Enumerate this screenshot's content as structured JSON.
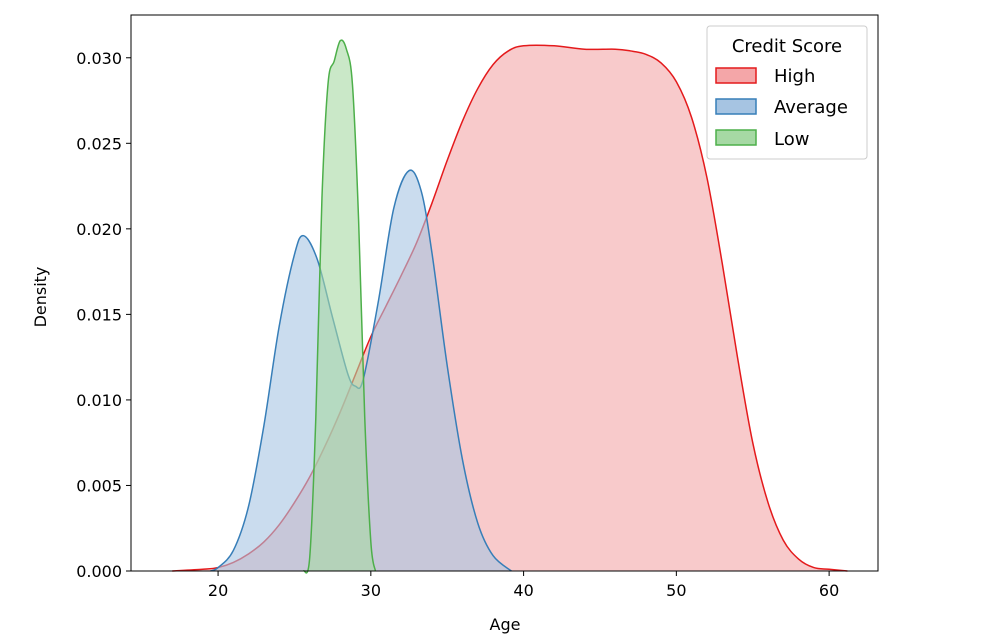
{
  "chart_data": {
    "type": "area",
    "title": "",
    "xlabel": "Age",
    "ylabel": "Density",
    "xlim": [
      14.3,
      63.2
    ],
    "ylim": [
      0,
      0.0325
    ],
    "x_ticks": [
      "20",
      "30",
      "40",
      "50",
      "60"
    ],
    "y_ticks": [
      "0.000",
      "0.005",
      "0.010",
      "0.015",
      "0.020",
      "0.025",
      "0.030"
    ],
    "grid": false,
    "legend": {
      "title": "Credit Score",
      "placement": "top-right",
      "entries": [
        "High",
        "Average",
        "Low"
      ]
    },
    "series": [
      {
        "name": "High",
        "color": "#e41a1c",
        "fill": "#f4a6a8",
        "points": [
          [
            17.0,
            0.0
          ],
          [
            19.0,
            0.0001
          ],
          [
            20.0,
            0.0002
          ],
          [
            21.0,
            0.0005
          ],
          [
            22.0,
            0.001
          ],
          [
            23.0,
            0.0017
          ],
          [
            24.0,
            0.0027
          ],
          [
            25.0,
            0.004
          ],
          [
            26.0,
            0.0055
          ],
          [
            27.0,
            0.0073
          ],
          [
            28.0,
            0.0093
          ],
          [
            29.0,
            0.0115
          ],
          [
            30.0,
            0.0137
          ],
          [
            31.0,
            0.0155
          ],
          [
            32.0,
            0.0173
          ],
          [
            33.0,
            0.0192
          ],
          [
            34.0,
            0.0215
          ],
          [
            35.0,
            0.024
          ],
          [
            36.0,
            0.0263
          ],
          [
            37.0,
            0.0282
          ],
          [
            38.0,
            0.0296
          ],
          [
            39.0,
            0.0304
          ],
          [
            40.0,
            0.0307
          ],
          [
            42.0,
            0.0307
          ],
          [
            44.0,
            0.0305
          ],
          [
            46.0,
            0.0305
          ],
          [
            47.0,
            0.0304
          ],
          [
            48.0,
            0.0302
          ],
          [
            49.0,
            0.0297
          ],
          [
            50.0,
            0.0286
          ],
          [
            51.0,
            0.0265
          ],
          [
            52.0,
            0.023
          ],
          [
            53.0,
            0.018
          ],
          [
            54.0,
            0.0125
          ],
          [
            55.0,
            0.0075
          ],
          [
            56.0,
            0.004
          ],
          [
            57.0,
            0.0018
          ],
          [
            58.0,
            0.0007
          ],
          [
            59.0,
            0.0002
          ],
          [
            60.0,
            0.0001
          ],
          [
            61.2,
            0.0
          ]
        ]
      },
      {
        "name": "Average",
        "color": "#377eb8",
        "fill": "#a6c4e2",
        "points": [
          [
            19.5,
            0.0
          ],
          [
            20.0,
            0.0002
          ],
          [
            21.0,
            0.0012
          ],
          [
            22.0,
            0.0038
          ],
          [
            23.0,
            0.0085
          ],
          [
            24.0,
            0.0143
          ],
          [
            25.0,
            0.0185
          ],
          [
            25.6,
            0.0196
          ],
          [
            26.5,
            0.0182
          ],
          [
            27.5,
            0.0148
          ],
          [
            28.5,
            0.0115
          ],
          [
            29.0,
            0.0108
          ],
          [
            29.5,
            0.0112
          ],
          [
            30.5,
            0.0158
          ],
          [
            31.5,
            0.0212
          ],
          [
            32.5,
            0.0234
          ],
          [
            33.3,
            0.0222
          ],
          [
            34.0,
            0.0186
          ],
          [
            35.0,
            0.012
          ],
          [
            36.0,
            0.0065
          ],
          [
            37.0,
            0.0028
          ],
          [
            38.0,
            0.0009
          ],
          [
            39.2,
            0.0
          ]
        ]
      },
      {
        "name": "Low",
        "color": "#4daf4a",
        "fill": "#a6d9a4",
        "points": [
          [
            25.6,
            0.0
          ],
          [
            26.0,
            0.0008
          ],
          [
            26.4,
            0.009
          ],
          [
            26.8,
            0.0218
          ],
          [
            27.2,
            0.0285
          ],
          [
            27.6,
            0.0298
          ],
          [
            28.0,
            0.031
          ],
          [
            28.4,
            0.0305
          ],
          [
            28.8,
            0.0284
          ],
          [
            29.2,
            0.0205
          ],
          [
            29.6,
            0.009
          ],
          [
            30.0,
            0.0017
          ],
          [
            30.3,
            0.0
          ]
        ]
      }
    ]
  }
}
